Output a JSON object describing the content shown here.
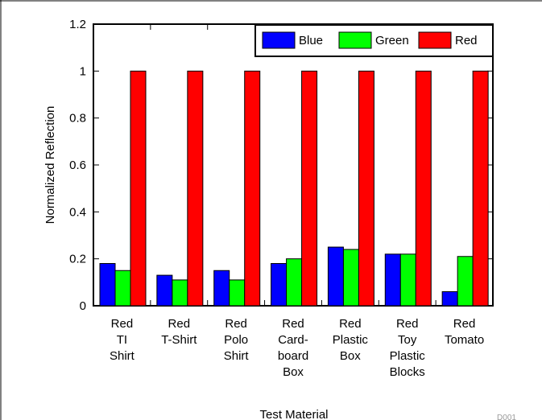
{
  "chart_data": {
    "type": "bar",
    "title": "",
    "xlabel": "Test Material",
    "ylabel": "Normalized Reflection",
    "ylim": [
      0,
      1.2
    ],
    "yticks": [
      "0",
      "0.2",
      "0.4",
      "0.6",
      "0.8",
      "1",
      "1.2"
    ],
    "grid": false,
    "legend_position": "top-right",
    "categories": [
      [
        "Red",
        "TI",
        "Shirt"
      ],
      [
        "Red",
        "T-Shirt"
      ],
      [
        "Red",
        "Polo",
        "Shirt"
      ],
      [
        "Red",
        "Card-",
        "board",
        "Box"
      ],
      [
        "Red",
        "Plastic",
        "Box"
      ],
      [
        "Red",
        "Toy",
        "Plastic",
        "Blocks"
      ],
      [
        "Red",
        "Tomato"
      ]
    ],
    "series": [
      {
        "name": "Blue",
        "color": "#0000ff",
        "values": [
          0.18,
          0.13,
          0.15,
          0.18,
          0.25,
          0.22,
          0.06
        ]
      },
      {
        "name": "Green",
        "color": "#00ff00",
        "values": [
          0.15,
          0.11,
          0.11,
          0.2,
          0.24,
          0.22,
          0.21
        ]
      },
      {
        "name": "Red",
        "color": "#ff0000",
        "values": [
          1.0,
          1.0,
          1.0,
          1.0,
          1.0,
          1.0,
          1.0
        ]
      }
    ],
    "figure_code": "D001"
  }
}
